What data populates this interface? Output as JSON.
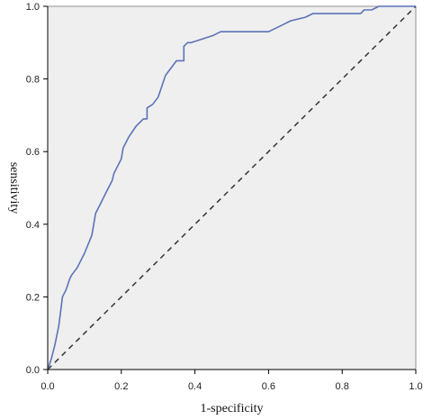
{
  "chart_data": {
    "type": "line",
    "xlabel": "1-specificity",
    "ylabel": "sensitivity",
    "xlim": [
      0,
      1
    ],
    "ylim": [
      0,
      1
    ],
    "x_ticks": [
      "0.0",
      "0.2",
      "0.4",
      "0.6",
      "0.8",
      "1.0"
    ],
    "y_ticks": [
      "0.0",
      "0.2",
      "0.4",
      "0.6",
      "0.8",
      "1.0"
    ],
    "grid": false,
    "background": "#efefef",
    "series": [
      {
        "color": "#5b73b8",
        "style": "solid",
        "x": [
          0.0,
          0.01,
          0.02,
          0.03,
          0.03,
          0.04,
          0.04,
          0.05,
          0.06,
          0.065,
          0.08,
          0.1,
          0.12,
          0.13,
          0.14,
          0.16,
          0.175,
          0.18,
          0.19,
          0.2,
          0.205,
          0.22,
          0.24,
          0.26,
          0.27,
          0.27,
          0.285,
          0.285,
          0.3,
          0.31,
          0.32,
          0.35,
          0.37,
          0.37,
          0.38,
          0.39,
          0.42,
          0.45,
          0.47,
          0.6,
          0.64,
          0.66,
          0.66,
          0.7,
          0.7,
          0.72,
          0.75,
          0.8,
          0.85,
          0.86,
          0.88,
          0.9,
          1.0
        ],
        "y": [
          0.0,
          0.03,
          0.07,
          0.12,
          0.12,
          0.2,
          0.2,
          0.22,
          0.25,
          0.26,
          0.28,
          0.32,
          0.37,
          0.43,
          0.45,
          0.49,
          0.52,
          0.54,
          0.56,
          0.58,
          0.61,
          0.64,
          0.67,
          0.69,
          0.69,
          0.72,
          0.73,
          0.73,
          0.75,
          0.78,
          0.81,
          0.85,
          0.85,
          0.89,
          0.9,
          0.9,
          0.91,
          0.92,
          0.93,
          0.93,
          0.95,
          0.96,
          0.96,
          0.97,
          0.97,
          0.98,
          0.98,
          0.98,
          0.98,
          0.99,
          0.99,
          1.0,
          1.0
        ]
      },
      {
        "color": "#333333",
        "style": "dashed",
        "x": [
          0,
          1
        ],
        "y": [
          0,
          1
        ]
      }
    ]
  }
}
